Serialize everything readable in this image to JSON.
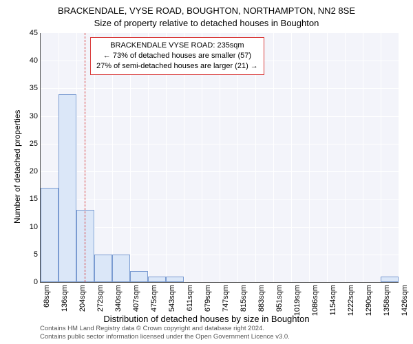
{
  "chart": {
    "type": "histogram",
    "title_line1": "BRACKENDALE, VYSE ROAD, BOUGHTON, NORTHAMPTON, NN2 8SE",
    "title_line2": "Size of property relative to detached houses in Boughton",
    "title_fontsize": 13,
    "y_axis_label": "Number of detached properties",
    "x_axis_label": "Distribution of detached houses by size in Boughton",
    "label_fontsize": 12,
    "ylim": [
      0,
      45
    ],
    "ytick_step": 5,
    "y_ticks": [
      0,
      5,
      10,
      15,
      20,
      25,
      30,
      35,
      40,
      45
    ],
    "x_tick_labels": [
      "68sqm",
      "136sqm",
      "204sqm",
      "272sqm",
      "340sqm",
      "407sqm",
      "475sqm",
      "543sqm",
      "611sqm",
      "679sqm",
      "747sqm",
      "815sqm",
      "883sqm",
      "951sqm",
      "1019sqm",
      "1086sqm",
      "1154sqm",
      "1222sqm",
      "1290sqm",
      "1358sqm",
      "1426sqm"
    ],
    "bar_values": [
      17,
      34,
      13,
      5,
      5,
      2,
      1,
      1,
      0,
      0,
      0,
      0,
      0,
      0,
      0,
      0,
      0,
      0,
      0,
      1
    ],
    "bar_fill_color": "#dbe7f8",
    "bar_border_color": "#7a9bd1",
    "plot_background_color": "#f3f4fa",
    "grid_color": "#ffffff",
    "background_color": "#ffffff",
    "marker": {
      "position_sqm": 235,
      "color": "#d93b3b",
      "dash": "dashed"
    },
    "annotation": {
      "line1": "BRACKENDALE VYSE ROAD: 235sqm",
      "line2": "← 73% of detached houses are smaller (57)",
      "line3": "27% of semi-detached houses are larger (21) →",
      "border_color": "#d93b3b",
      "background_color": "#ffffff",
      "fontsize": 11
    },
    "footer_line1": "Contains HM Land Registry data © Crown copyright and database right 2024.",
    "footer_line2": "Contains public sector information licensed under the Open Government Licence v3.0.",
    "footer_color": "#555555",
    "footer_fontsize": 9.5
  }
}
